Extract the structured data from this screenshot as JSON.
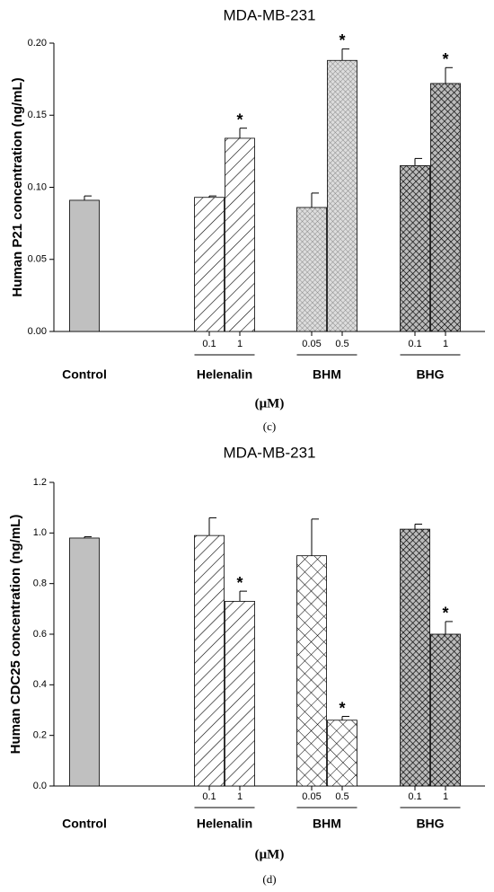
{
  "chart_data": [
    {
      "type": "bar",
      "title": "MDA-MB-231",
      "y_label": "Human P21 concentration (ng/mL)",
      "ylim": [
        0,
        0.2
      ],
      "yticks": [
        {
          "value": 0,
          "label": "0.00"
        },
        0.05,
        {
          "value": 0.1,
          "label": "0.10"
        },
        0.15,
        {
          "value": 0.2,
          "label": "0.20"
        }
      ],
      "groups": [
        {
          "name": "Control",
          "doses": [
            null
          ],
          "values": [
            0.091
          ],
          "errors": [
            0.003
          ],
          "significance": [
            null
          ]
        },
        {
          "name": "Helenalin",
          "doses": [
            "0.1",
            "1"
          ],
          "values": [
            0.093,
            0.134
          ],
          "errors": [
            0.001,
            0.007
          ],
          "significance": [
            null,
            "*"
          ]
        },
        {
          "name": "BHM",
          "doses": [
            "0.05",
            "0.5"
          ],
          "values": [
            0.086,
            0.188
          ],
          "errors": [
            0.01,
            0.008
          ],
          "significance": [
            null,
            "*"
          ]
        },
        {
          "name": "BHG",
          "doses": [
            "0.1",
            "1"
          ],
          "values": [
            0.115,
            0.172
          ],
          "errors": [
            0.005,
            0.011
          ],
          "significance": [
            null,
            "*"
          ]
        }
      ],
      "unit": "(μM)",
      "caption": "(c)"
    },
    {
      "type": "bar",
      "title": "MDA-MB-231",
      "y_label": "Human CDC25 concentration (ng/mL)",
      "ylim": [
        0,
        1.2
      ],
      "yticks": [
        {
          "value": 0,
          "label": "0.0"
        },
        0.2,
        0.4,
        0.6,
        0.8,
        {
          "value": 1,
          "label": "1.0"
        },
        1.2
      ],
      "groups": [
        {
          "name": "Control",
          "doses": [
            null
          ],
          "values": [
            0.98
          ],
          "errors": [
            0.005
          ],
          "significance": [
            null
          ]
        },
        {
          "name": "Helenalin",
          "doses": [
            "0.1",
            "1"
          ],
          "values": [
            0.99,
            0.73
          ],
          "errors": [
            0.07,
            0.04
          ],
          "significance": [
            null,
            "*"
          ]
        },
        {
          "name": "BHM",
          "doses": [
            "0.05",
            "0.5"
          ],
          "values": [
            0.91,
            0.26
          ],
          "errors": [
            0.145,
            0.015
          ],
          "significance": [
            null,
            "*"
          ]
        },
        {
          "name": "BHG",
          "doses": [
            "0.1",
            "1"
          ],
          "values": [
            1.015,
            0.6
          ],
          "errors": [
            0.02,
            0.05
          ],
          "significance": [
            null,
            "*"
          ]
        }
      ],
      "unit": "(μM)",
      "caption": "(d)"
    }
  ]
}
